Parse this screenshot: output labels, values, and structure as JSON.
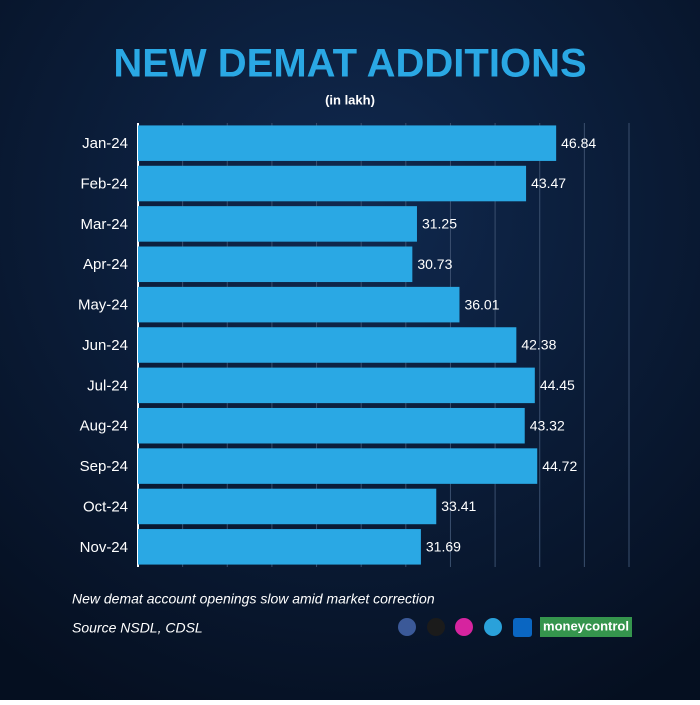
{
  "chart_data": {
    "type": "hbar",
    "title": "NEW DEMAT ADDITIONS",
    "subtitle": "(in lakh)",
    "categories": [
      "Jan-24",
      "Feb-24",
      "Mar-24",
      "Apr-24",
      "May-24",
      "Jun-24",
      "Jul-24",
      "Aug-24",
      "Sep-24",
      "Oct-24",
      "Nov-24"
    ],
    "values": [
      46.84,
      43.47,
      31.25,
      30.73,
      36.01,
      42.38,
      44.45,
      43.32,
      44.72,
      33.41,
      31.69
    ],
    "color": "#2aa8e4",
    "xlim": [
      0,
      55
    ],
    "xticks": [
      0,
      5,
      10,
      15,
      20,
      25,
      30,
      35,
      40,
      45,
      50,
      55
    ],
    "grid": true
  },
  "footer": {
    "note": "New demat account openings slow amid market correction",
    "source": "Source NSDL, CDSL",
    "brand": "moneycontrol"
  }
}
